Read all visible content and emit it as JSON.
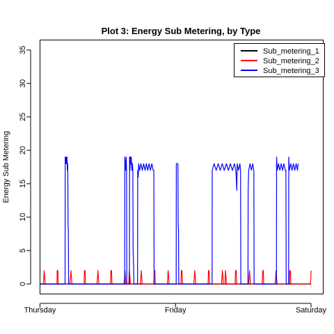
{
  "chart_data": {
    "type": "line",
    "title": "Plot 3: Energy Sub Metering, by Type",
    "xlabel": "",
    "ylabel": "Energy Sub Metering",
    "x_domain_days": [
      0,
      2
    ],
    "ylim": [
      -1.5,
      36.5
    ],
    "x_ticks": [
      {
        "label": "Thursday",
        "day": 0
      },
      {
        "label": "Friday",
        "day": 1
      },
      {
        "label": "Saturday",
        "day": 2
      }
    ],
    "y_ticks": [
      0,
      5,
      10,
      15,
      20,
      25,
      30,
      35
    ],
    "legend_position": "top-right",
    "series": [
      {
        "name": "Sub_metering_1",
        "color": "#000000",
        "points": [
          [
            0,
            0
          ],
          [
            2,
            0
          ]
        ]
      },
      {
        "name": "Sub_metering_2",
        "color": "#ff0000",
        "points": [
          [
            0.0,
            0
          ],
          [
            0.025,
            0
          ],
          [
            0.028,
            1
          ],
          [
            0.031,
            2
          ],
          [
            0.035,
            1
          ],
          [
            0.038,
            0
          ],
          [
            0.125,
            0
          ],
          [
            0.127,
            2
          ],
          [
            0.132,
            2
          ],
          [
            0.134,
            0
          ],
          [
            0.22,
            0
          ],
          [
            0.225,
            1
          ],
          [
            0.228,
            2
          ],
          [
            0.232,
            1
          ],
          [
            0.235,
            0
          ],
          [
            0.325,
            0
          ],
          [
            0.328,
            2
          ],
          [
            0.333,
            2
          ],
          [
            0.336,
            0
          ],
          [
            0.42,
            0
          ],
          [
            0.424,
            1
          ],
          [
            0.427,
            2
          ],
          [
            0.431,
            1
          ],
          [
            0.434,
            0
          ],
          [
            0.52,
            0
          ],
          [
            0.523,
            2
          ],
          [
            0.528,
            2
          ],
          [
            0.531,
            0
          ],
          [
            0.62,
            0
          ],
          [
            0.624,
            1
          ],
          [
            0.627,
            2
          ],
          [
            0.631,
            1
          ],
          [
            0.634,
            0
          ],
          [
            0.655,
            0
          ],
          [
            0.659,
            2
          ],
          [
            0.664,
            1
          ],
          [
            0.667,
            0
          ],
          [
            0.74,
            0
          ],
          [
            0.744,
            1
          ],
          [
            0.747,
            2
          ],
          [
            0.751,
            1
          ],
          [
            0.754,
            0
          ],
          [
            0.84,
            0
          ],
          [
            0.843,
            2
          ],
          [
            0.848,
            2
          ],
          [
            0.851,
            0
          ],
          [
            0.94,
            0
          ],
          [
            0.943,
            1
          ],
          [
            0.946,
            2
          ],
          [
            0.95,
            1
          ],
          [
            0.953,
            0
          ],
          [
            1.04,
            0
          ],
          [
            1.043,
            2
          ],
          [
            1.048,
            2
          ],
          [
            1.051,
            0
          ],
          [
            1.135,
            0
          ],
          [
            1.139,
            1
          ],
          [
            1.142,
            2
          ],
          [
            1.146,
            1
          ],
          [
            1.149,
            0
          ],
          [
            1.24,
            0
          ],
          [
            1.243,
            2
          ],
          [
            1.248,
            2
          ],
          [
            1.251,
            0
          ],
          [
            1.34,
            0
          ],
          [
            1.343,
            1
          ],
          [
            1.346,
            2
          ],
          [
            1.35,
            1
          ],
          [
            1.353,
            0
          ],
          [
            1.365,
            0
          ],
          [
            1.368,
            2
          ],
          [
            1.373,
            1
          ],
          [
            1.376,
            0
          ],
          [
            1.44,
            0
          ],
          [
            1.443,
            2
          ],
          [
            1.448,
            2
          ],
          [
            1.451,
            0
          ],
          [
            1.54,
            0
          ],
          [
            1.543,
            1
          ],
          [
            1.546,
            2
          ],
          [
            1.55,
            1
          ],
          [
            1.553,
            0
          ],
          [
            1.64,
            0
          ],
          [
            1.643,
            2
          ],
          [
            1.648,
            2
          ],
          [
            1.651,
            0
          ],
          [
            1.735,
            0
          ],
          [
            1.739,
            1
          ],
          [
            1.742,
            2
          ],
          [
            1.746,
            1
          ],
          [
            1.749,
            0
          ],
          [
            1.84,
            0
          ],
          [
            1.843,
            2
          ],
          [
            1.848,
            2
          ],
          [
            1.851,
            0
          ],
          [
            1.995,
            0
          ],
          [
            1.999,
            1
          ],
          [
            2.0,
            2
          ]
        ]
      },
      {
        "name": "Sub_metering_3",
        "color": "#0000ff",
        "points": [
          [
            0.0,
            0
          ],
          [
            0.185,
            0
          ],
          [
            0.186,
            19
          ],
          [
            0.19,
            18
          ],
          [
            0.193,
            19
          ],
          [
            0.196,
            18
          ],
          [
            0.199,
            19
          ],
          [
            0.202,
            17
          ],
          [
            0.205,
            18
          ],
          [
            0.207,
            9
          ],
          [
            0.209,
            8
          ],
          [
            0.211,
            0
          ],
          [
            0.625,
            0
          ],
          [
            0.626,
            19
          ],
          [
            0.63,
            18
          ],
          [
            0.633,
            17
          ],
          [
            0.636,
            19
          ],
          [
            0.639,
            17
          ],
          [
            0.641,
            0
          ],
          [
            0.66,
            0
          ],
          [
            0.661,
            19
          ],
          [
            0.664,
            17
          ],
          [
            0.667,
            19
          ],
          [
            0.67,
            18
          ],
          [
            0.673,
            19
          ],
          [
            0.676,
            18
          ],
          [
            0.679,
            17
          ],
          [
            0.682,
            18
          ],
          [
            0.685,
            17
          ],
          [
            0.687,
            5
          ],
          [
            0.69,
            3
          ],
          [
            0.693,
            0
          ],
          [
            0.72,
            0
          ],
          [
            0.721,
            17
          ],
          [
            0.725,
            16
          ],
          [
            0.728,
            18
          ],
          [
            0.735,
            17
          ],
          [
            0.745,
            18
          ],
          [
            0.755,
            17
          ],
          [
            0.765,
            18
          ],
          [
            0.775,
            17
          ],
          [
            0.785,
            18
          ],
          [
            0.795,
            17
          ],
          [
            0.805,
            18
          ],
          [
            0.815,
            17
          ],
          [
            0.825,
            18
          ],
          [
            0.835,
            17
          ],
          [
            0.84,
            17
          ],
          [
            0.842,
            0
          ],
          [
            1.005,
            0
          ],
          [
            1.006,
            18
          ],
          [
            1.018,
            18
          ],
          [
            1.02,
            9
          ],
          [
            1.022,
            8
          ],
          [
            1.024,
            0
          ],
          [
            1.27,
            0
          ],
          [
            1.271,
            17
          ],
          [
            1.285,
            18
          ],
          [
            1.3,
            17
          ],
          [
            1.315,
            18
          ],
          [
            1.33,
            17
          ],
          [
            1.345,
            18
          ],
          [
            1.36,
            17
          ],
          [
            1.375,
            18
          ],
          [
            1.39,
            17
          ],
          [
            1.405,
            18
          ],
          [
            1.42,
            17
          ],
          [
            1.435,
            18
          ],
          [
            1.445,
            17
          ],
          [
            1.448,
            16
          ],
          [
            1.452,
            14
          ],
          [
            1.455,
            18
          ],
          [
            1.465,
            17
          ],
          [
            1.475,
            18
          ],
          [
            1.48,
            17
          ],
          [
            1.482,
            0
          ],
          [
            1.535,
            0
          ],
          [
            1.536,
            14
          ],
          [
            1.54,
            17
          ],
          [
            1.55,
            18
          ],
          [
            1.56,
            17
          ],
          [
            1.57,
            18
          ],
          [
            1.578,
            17
          ],
          [
            1.58,
            0
          ],
          [
            1.745,
            0
          ],
          [
            1.746,
            19
          ],
          [
            1.75,
            17
          ],
          [
            1.76,
            18
          ],
          [
            1.77,
            17
          ],
          [
            1.78,
            18
          ],
          [
            1.79,
            17
          ],
          [
            1.8,
            18
          ],
          [
            1.81,
            17
          ],
          [
            1.815,
            17
          ],
          [
            1.817,
            0
          ],
          [
            1.835,
            0
          ],
          [
            1.836,
            19
          ],
          [
            1.84,
            17
          ],
          [
            1.85,
            18
          ],
          [
            1.86,
            17
          ],
          [
            1.87,
            18
          ],
          [
            1.88,
            17
          ],
          [
            1.89,
            18
          ],
          [
            1.9,
            17
          ],
          [
            1.905,
            18
          ]
        ]
      }
    ]
  }
}
